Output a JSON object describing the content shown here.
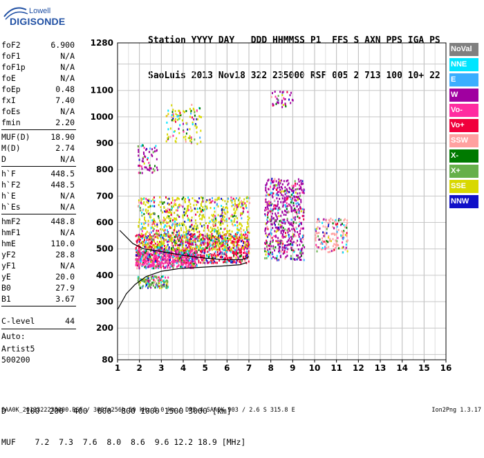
{
  "logo": {
    "small": "Lowell",
    "big": "DIGISONDE"
  },
  "header": {
    "labels": [
      "Station",
      "YYYY",
      "DAY",
      "DDD",
      "HHMMSS",
      "P1",
      "FFS",
      "S",
      "AXN",
      "PPS",
      "IGA",
      "PS"
    ],
    "values": [
      "SaoLuis",
      "2013",
      "Nov18",
      "322",
      "235000",
      "RSF",
      "005",
      "2",
      "713",
      "100",
      "10+",
      "22"
    ]
  },
  "params": [
    {
      "name": "foF2",
      "value": "6.900"
    },
    {
      "name": "foF1",
      "value": "N/A"
    },
    {
      "name": "foF1p",
      "value": "N/A"
    },
    {
      "name": "foE",
      "value": "N/A"
    },
    {
      "name": "foEp",
      "value": "0.48"
    },
    {
      "name": "fxI",
      "value": "7.40"
    },
    {
      "name": "foEs",
      "value": "N/A"
    },
    {
      "name": "fmin",
      "value": "2.20"
    },
    {
      "name": "MUF(D)",
      "value": "18.90"
    },
    {
      "name": "M(D)",
      "value": "2.74"
    },
    {
      "name": "D",
      "value": "N/A"
    },
    {
      "name": "h`F",
      "value": "448.5"
    },
    {
      "name": "h`F2",
      "value": "448.5"
    },
    {
      "name": "h`E",
      "value": "N/A"
    },
    {
      "name": "h`Es",
      "value": "N/A"
    },
    {
      "name": "hmF2",
      "value": "448.8"
    },
    {
      "name": "hmF1",
      "value": "N/A"
    },
    {
      "name": "hmE",
      "value": "110.0"
    },
    {
      "name": "yF2",
      "value": "28.8"
    },
    {
      "name": "yF1",
      "value": "N/A"
    },
    {
      "name": "yE",
      "value": "20.0"
    },
    {
      "name": "B0",
      "value": "27.9"
    },
    {
      "name": "B1",
      "value": "3.67"
    },
    {
      "name": "C-level",
      "value": "44"
    }
  ],
  "auto_lines": [
    "Auto:",
    "Artist5",
    "500200"
  ],
  "legend": [
    {
      "label": "NoVal",
      "color": "#808080"
    },
    {
      "label": "NNE",
      "color": "#00e5ff"
    },
    {
      "label": "E",
      "color": "#3aaeff"
    },
    {
      "label": "W",
      "color": "#a000a0"
    },
    {
      "label": "Vo-",
      "color": "#ff2ca0"
    },
    {
      "label": "Vo+",
      "color": "#f0003c"
    },
    {
      "label": "SSW",
      "color": "#ffa0a0"
    },
    {
      "label": "X-",
      "color": "#007a00"
    },
    {
      "label": "X+",
      "color": "#66b04a"
    },
    {
      "label": "SSE",
      "color": "#d8d800"
    },
    {
      "label": "NNW",
      "color": "#1010c8"
    }
  ],
  "muf_table": {
    "d_label": "D",
    "d_values": [
      "100",
      "200",
      "400",
      "600",
      "800",
      "1000",
      "1500",
      "3000",
      "[km]"
    ],
    "muf_label": "MUF",
    "muf_values": [
      "7.2",
      "7.3",
      "7.6",
      "8.0",
      "8.6",
      "9.6",
      "12.2",
      "18.9",
      "[MHz]"
    ]
  },
  "footer": {
    "left": "SAA0K_2013322235000.RSF / 300fx256h 50 kHz 5.0 km / DPS-4 SAA0K 903 / 2.6 S 315.8 E",
    "right": "Ion2Png 1.3.17"
  },
  "chart_data": {
    "type": "scatter",
    "title": "",
    "xlabel": "",
    "ylabel": "",
    "xlim": [
      1,
      16
    ],
    "ylim": [
      80,
      1280
    ],
    "x_ticks": [
      "1",
      "2",
      "3",
      "4",
      "5",
      "6",
      "7",
      "8",
      "9",
      "10",
      "11",
      "12",
      "13",
      "14",
      "15",
      "16"
    ],
    "y_ticks": [
      "80",
      "200",
      "300",
      "400",
      "500",
      "600",
      "700",
      "800",
      "900",
      "1000",
      "1100",
      "1280"
    ],
    "grid": true,
    "legend_position": "right",
    "clusters": [
      {
        "name": "F2 trace main",
        "x": [
          1.8,
          7.0
        ],
        "y": [
          450,
          560
        ],
        "color": "Vo+"
      },
      {
        "name": "F2 lower spread",
        "x": [
          1.8,
          4.6
        ],
        "y": [
          430,
          500
        ],
        "color": "Vo-"
      },
      {
        "name": "E-region trace",
        "x": [
          1.9,
          3.3
        ],
        "y": [
          355,
          400
        ],
        "color": "X+"
      },
      {
        "name": "spread F echoes",
        "x": [
          1.9,
          7.0
        ],
        "y": [
          500,
          700
        ],
        "color": "SSE"
      },
      {
        "name": "oblique echoes 8-9.5 MHz",
        "x": [
          7.7,
          9.5
        ],
        "y": [
          460,
          770
        ],
        "color": "W"
      },
      {
        "name": "oblique echoes 10-11.5 MHz",
        "x": [
          10.0,
          11.5
        ],
        "y": [
          490,
          620
        ],
        "color": "SSW"
      },
      {
        "name": "multiple echoes 2-3 MHz",
        "x": [
          1.9,
          2.8
        ],
        "y": [
          790,
          900
        ],
        "color": "W"
      },
      {
        "name": "multiple echoes 3-4.8 MHz",
        "x": [
          3.2,
          4.8
        ],
        "y": [
          900,
          1050
        ],
        "color": "SSE"
      },
      {
        "name": "multiple echoes 8-9 MHz",
        "x": [
          8.0,
          9.0
        ],
        "y": [
          1040,
          1100
        ],
        "color": "W"
      }
    ],
    "traces": [
      {
        "name": "O-trace profile",
        "x": [
          1.0,
          1.4,
          1.8,
          2.3,
          3.0,
          3.8,
          4.8,
          5.8,
          6.6,
          6.9
        ],
        "y": [
          270,
          330,
          365,
          395,
          415,
          425,
          430,
          435,
          440,
          448
        ]
      },
      {
        "name": "X-trace profile",
        "x": [
          1.1,
          1.7,
          2.2,
          3.0,
          4.0,
          5.0,
          6.0,
          6.7,
          7.0
        ],
        "y": [
          570,
          520,
          500,
          490,
          475,
          465,
          458,
          460,
          470
        ]
      }
    ]
  }
}
